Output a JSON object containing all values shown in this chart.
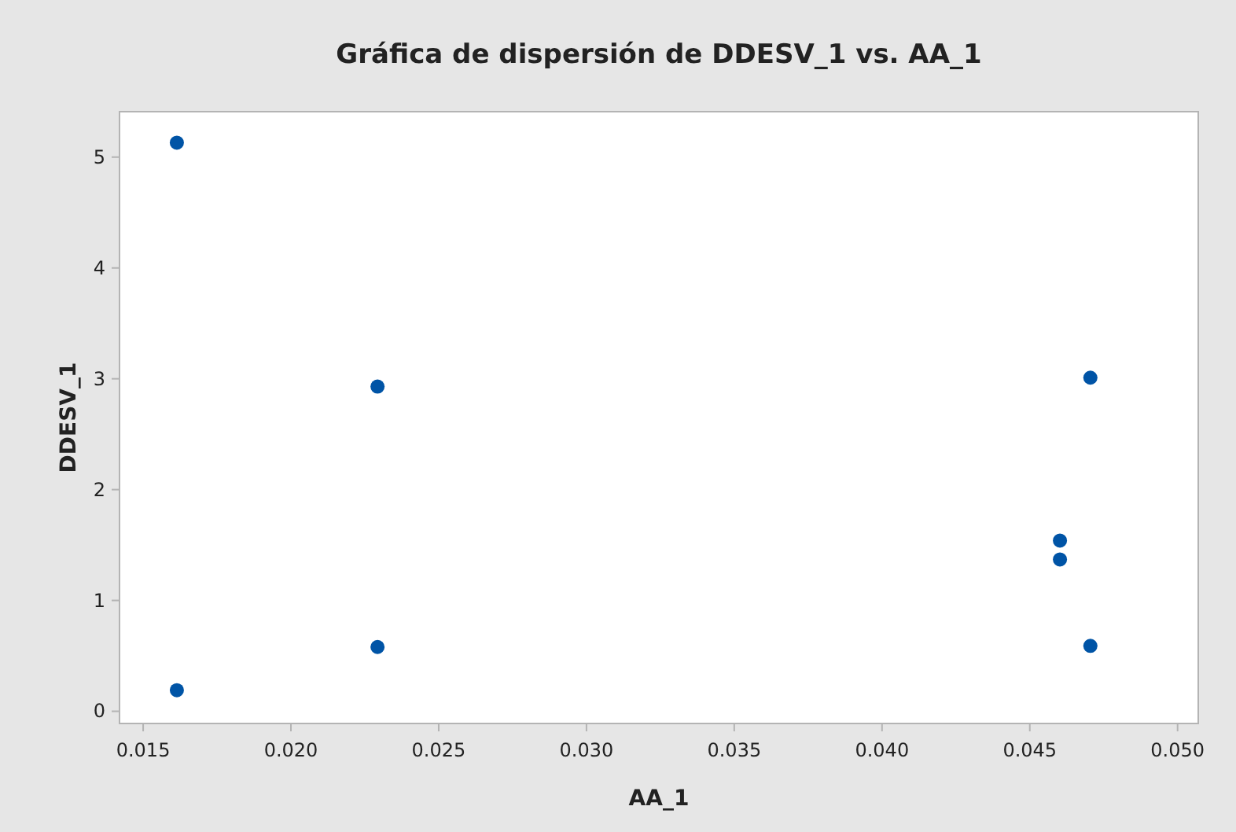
{
  "chart_data": {
    "type": "scatter",
    "title": "Gráfica de dispersión de DDESV_1 vs. AA_1",
    "xlabel": "AA_1",
    "ylabel": "DDESV_1",
    "x": [
      0.01614,
      0.01614,
      0.02293,
      0.02293,
      0.04602,
      0.04602,
      0.04705,
      0.04705
    ],
    "series": [
      {
        "color": "#0054a6",
        "values": [
          5.13,
          0.19,
          2.93,
          0.58,
          1.54,
          1.37,
          3.01,
          0.59
        ]
      }
    ],
    "xlim": [
      0.0142,
      0.0507
    ],
    "ylim": [
      -0.11,
      5.41
    ],
    "xticks": [
      {
        "value": 0.015,
        "label": "0.015"
      },
      {
        "value": 0.02,
        "label": "0.020"
      },
      {
        "value": 0.025,
        "label": "0.025"
      },
      {
        "value": 0.03,
        "label": "0.030"
      },
      {
        "value": 0.035,
        "label": "0.035"
      },
      {
        "value": 0.04,
        "label": "0.040"
      },
      {
        "value": 0.045,
        "label": "0.045"
      },
      {
        "value": 0.05,
        "label": "0.050"
      }
    ],
    "yticks": [
      0,
      1,
      2,
      3,
      4,
      5
    ],
    "marker": "circle",
    "grid": false
  }
}
